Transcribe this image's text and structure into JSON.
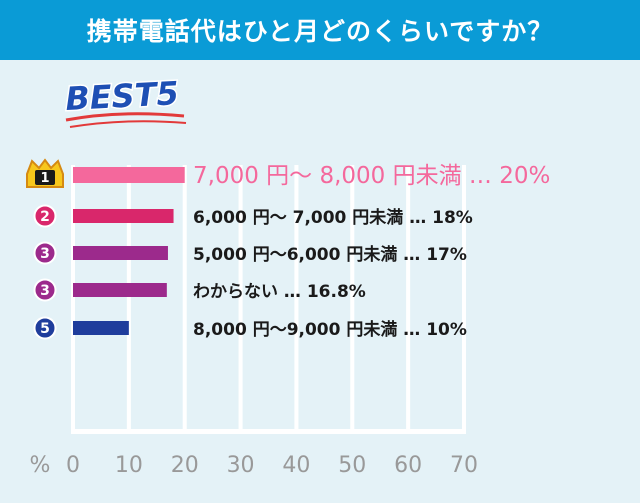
{
  "title": "携帯電話代はひと月どのくらいですか？",
  "chart_data": {
    "type": "bar",
    "orientation": "horizontal",
    "heading": "BEST5",
    "unit_label": "%",
    "xlim": [
      0,
      70
    ],
    "xticks": [
      0,
      10,
      20,
      30,
      40,
      50,
      60,
      70
    ],
    "grid": true,
    "rows": [
      {
        "rank": "1",
        "label": "7,000 円〜 8,000 円未満",
        "value": 20,
        "display": "20%",
        "color": "#f4689c"
      },
      {
        "rank": "2",
        "label": "6,000 円〜 7,000 円未満",
        "value": 18,
        "display": "18%",
        "color": "#d9276b"
      },
      {
        "rank": "3",
        "label": "5,000 円〜6,000 円未満",
        "value": 17,
        "display": "17%",
        "color": "#9c2a8c"
      },
      {
        "rank": "3",
        "label": "わからない",
        "value": 16.8,
        "display": "16.8%",
        "color": "#9c2a8c"
      },
      {
        "rank": "5",
        "label": "8,000 円〜9,000 円未満",
        "value": 10,
        "display": "10%",
        "color": "#1f3d9c"
      }
    ]
  }
}
